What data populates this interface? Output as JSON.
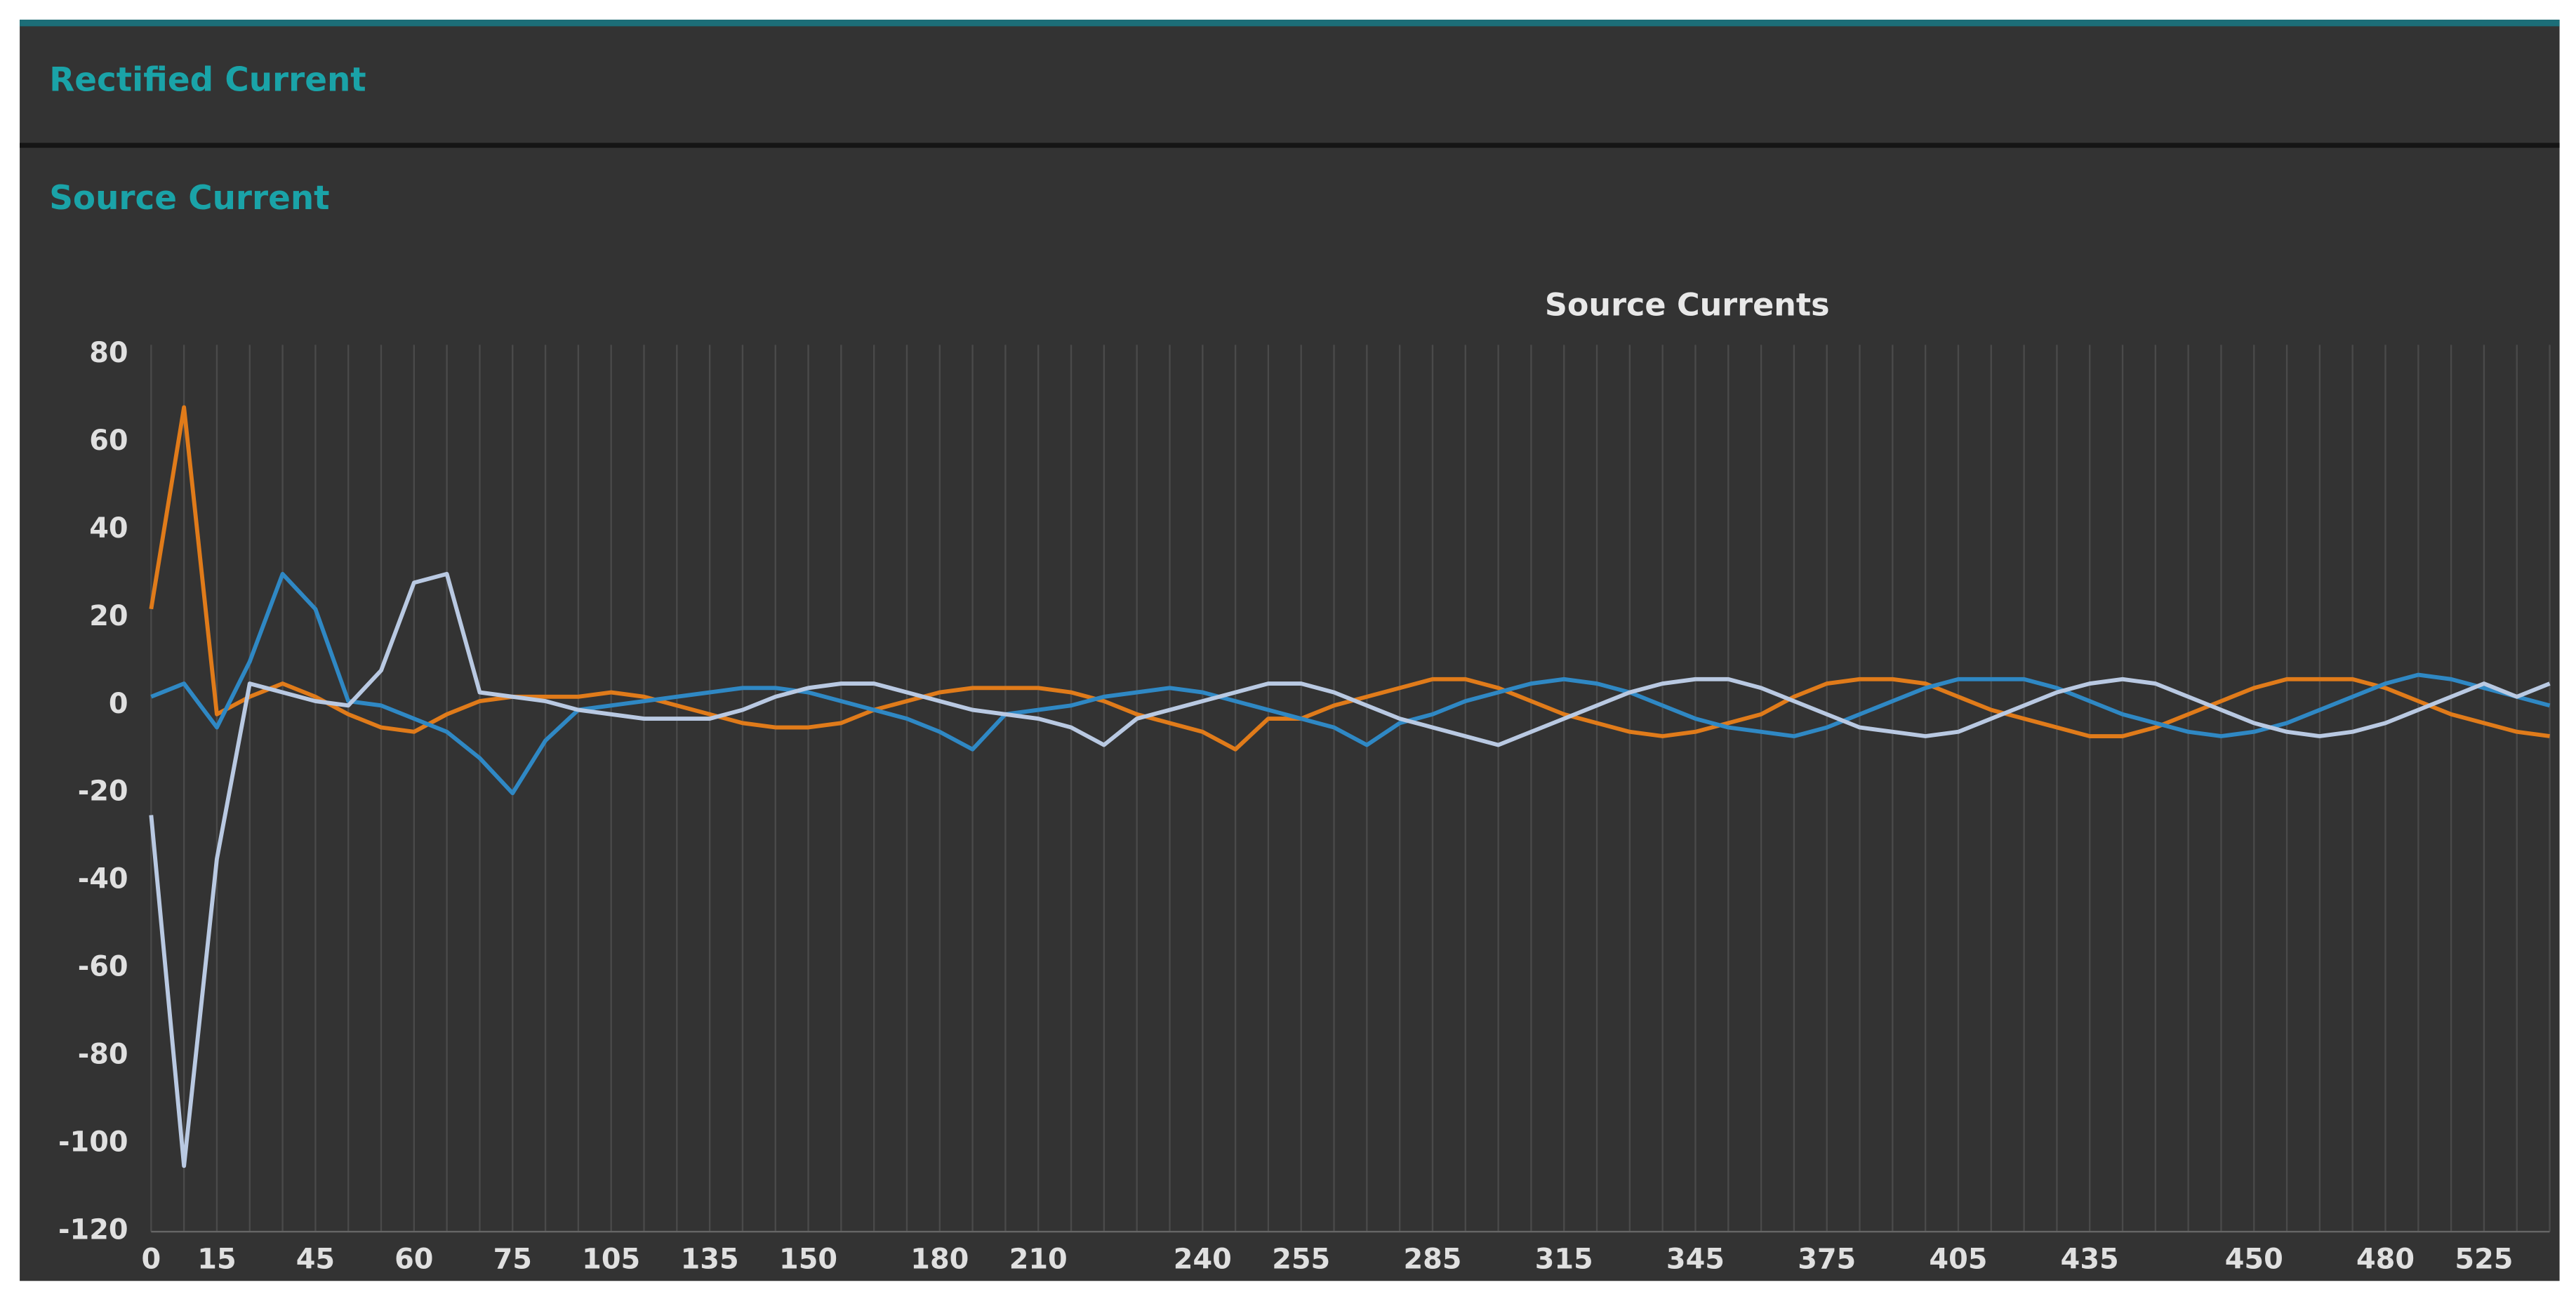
{
  "tabs": [
    "Rectified Current",
    "Source Current"
  ],
  "chart_data": {
    "type": "line",
    "title": "Source Currents",
    "categories": [
      "0",
      null,
      "15",
      null,
      null,
      "45",
      null,
      null,
      "60",
      null,
      null,
      "75",
      null,
      null,
      "105",
      null,
      null,
      "135",
      null,
      null,
      "150",
      null,
      null,
      null,
      "180",
      null,
      null,
      "210",
      null,
      null,
      null,
      null,
      "240",
      null,
      null,
      "255",
      null,
      null,
      null,
      "285",
      null,
      null,
      null,
      "315",
      null,
      null,
      null,
      "345",
      null,
      null,
      null,
      "375",
      null,
      null,
      null,
      "405",
      null,
      null,
      null,
      "435",
      null,
      null,
      null,
      null,
      "450",
      null,
      null,
      null,
      "480",
      null,
      null,
      "525",
      null,
      null
    ],
    "series": [
      {
        "color": "#e07b1a",
        "values": [
          22,
          68,
          -2,
          2,
          5,
          2,
          -2,
          -5,
          -6,
          -2,
          1,
          2,
          2,
          2,
          3,
          2,
          0,
          -2,
          -4,
          -5,
          -5,
          -4,
          -1,
          1,
          3,
          4,
          4,
          4,
          3,
          1,
          -2,
          -4,
          -6,
          -10,
          -3,
          -3,
          0,
          2,
          4,
          6,
          6,
          4,
          1,
          -2,
          -4,
          -6,
          -7,
          -6,
          -4,
          -2,
          2,
          5,
          6,
          6,
          5,
          2,
          -1,
          -3,
          -5,
          -7,
          -7,
          -5,
          -2,
          1,
          4,
          6,
          6,
          6,
          4,
          1,
          -2,
          -4,
          -6,
          -7
        ]
      },
      {
        "color": "#2f88c4",
        "values": [
          2,
          5,
          -5,
          10,
          30,
          22,
          1,
          0,
          -3,
          -6,
          -12,
          -20,
          -8,
          -1,
          0,
          1,
          2,
          3,
          4,
          4,
          3,
          1,
          -1,
          -3,
          -6,
          -10,
          -2,
          -1,
          0,
          2,
          3,
          4,
          3,
          1,
          -1,
          -3,
          -5,
          -9,
          -4,
          -2,
          1,
          3,
          5,
          6,
          5,
          3,
          0,
          -3,
          -5,
          -6,
          -7,
          -5,
          -2,
          1,
          4,
          6,
          6,
          6,
          4,
          1,
          -2,
          -4,
          -6,
          -7,
          -6,
          -4,
          -1,
          2,
          5,
          7,
          6,
          4,
          2,
          0
        ]
      },
      {
        "color": "#b9c9e2",
        "values": [
          -25,
          -105,
          -35,
          5,
          3,
          1,
          0,
          8,
          28,
          30,
          3,
          2,
          1,
          -1,
          -2,
          -3,
          -3,
          -3,
          -1,
          2,
          4,
          5,
          5,
          3,
          1,
          -1,
          -2,
          -3,
          -5,
          -9,
          -3,
          -1,
          1,
          3,
          5,
          5,
          3,
          0,
          -3,
          -5,
          -7,
          -9,
          -6,
          -3,
          0,
          3,
          5,
          6,
          6,
          4,
          1,
          -2,
          -5,
          -6,
          -7,
          -6,
          -3,
          0,
          3,
          5,
          6,
          5,
          2,
          -1,
          -4,
          -6,
          -7,
          -6,
          -4,
          -1,
          2,
          5,
          2,
          5
        ]
      }
    ],
    "ylim": [
      -120,
      80
    ],
    "yticks": [
      -120,
      -100,
      -80,
      -60,
      -40,
      -20,
      0,
      20,
      40,
      60,
      80
    ],
    "grid": true
  }
}
